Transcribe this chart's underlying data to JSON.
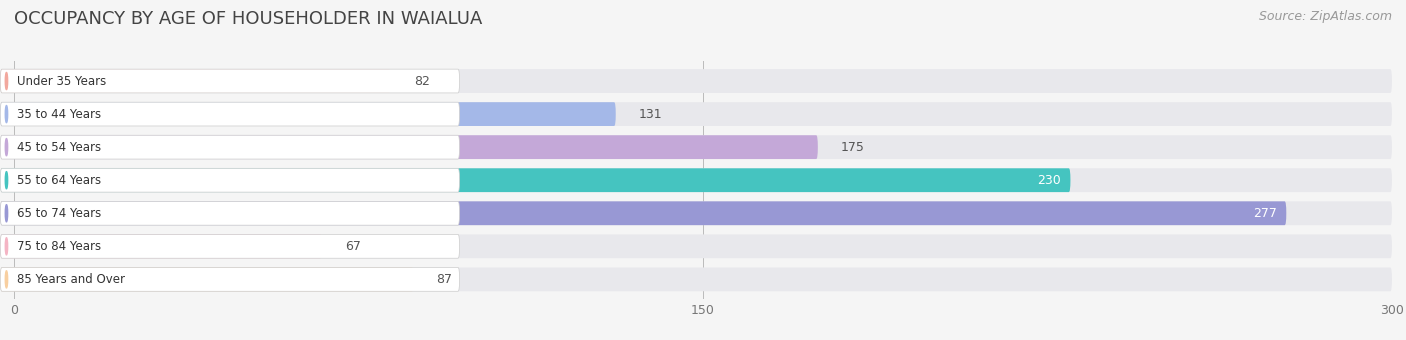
{
  "title": "OCCUPANCY BY AGE OF HOUSEHOLDER IN WAIALUA",
  "source": "Source: ZipAtlas.com",
  "categories": [
    "Under 35 Years",
    "35 to 44 Years",
    "45 to 54 Years",
    "55 to 64 Years",
    "65 to 74 Years",
    "75 to 84 Years",
    "85 Years and Over"
  ],
  "values": [
    82,
    131,
    175,
    230,
    277,
    67,
    87
  ],
  "bar_colors": [
    "#f2a89e",
    "#a4b8e8",
    "#c4a8d8",
    "#45c4c0",
    "#9898d4",
    "#f4b4c4",
    "#f8cfa0"
  ],
  "bar_bg_color": "#e8e8ec",
  "dot_colors": [
    "#f2a89e",
    "#a4b8e8",
    "#c4a8d8",
    "#45c4c0",
    "#9898d4",
    "#f4b4c4",
    "#f8cfa0"
  ],
  "xlim": [
    -5,
    300
  ],
  "xticks": [
    0,
    150,
    300
  ],
  "label_colors": [
    "#555555",
    "#555555",
    "#555555",
    "#ffffff",
    "#ffffff",
    "#555555",
    "#555555"
  ],
  "title_fontsize": 13,
  "source_fontsize": 9,
  "bar_label_fontsize": 9,
  "category_fontsize": 8.5,
  "background_color": "#f5f5f5",
  "fig_width": 14.06,
  "fig_height": 3.4
}
